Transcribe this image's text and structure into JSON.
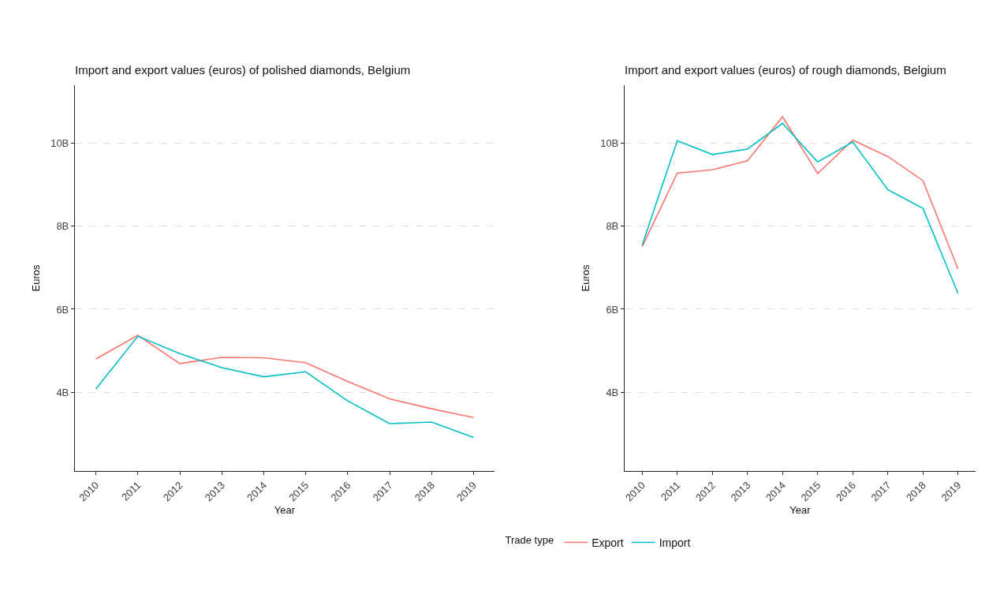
{
  "chart_data": [
    {
      "type": "line",
      "title": "Import and export values (euros) of polished diamonds, Belgium",
      "xlabel": "Year",
      "ylabel": "Euros",
      "categories": [
        "2010",
        "2011",
        "2012",
        "2013",
        "2014",
        "2015",
        "2016",
        "2017",
        "2018",
        "2019"
      ],
      "series": [
        {
          "color": "#f8766d",
          "values": [
            4.8,
            5.37,
            4.69,
            4.84,
            4.83,
            4.71,
            4.26,
            3.84,
            3.6,
            3.39
          ]
        },
        {
          "color": "#00bfc4",
          "values": [
            4.08,
            5.35,
            4.93,
            4.59,
            4.37,
            4.49,
            3.79,
            3.24,
            3.28,
            2.91
          ]
        }
      ],
      "ylim": [
        2.1,
        11.4
      ],
      "yticks": [
        {
          "value": 4,
          "label": "4B"
        },
        {
          "value": 6,
          "label": "6B"
        },
        {
          "value": 8,
          "label": "8B"
        },
        {
          "value": 10,
          "label": "10B"
        }
      ],
      "grid": "y",
      "legend": false
    },
    {
      "type": "line",
      "title": "Import and export values (euros) of rough diamonds, Belgium",
      "xlabel": "Year",
      "ylabel": "Euros",
      "legend_title": "Trade type",
      "categories": [
        "2010",
        "2011",
        "2012",
        "2013",
        "2014",
        "2015",
        "2016",
        "2017",
        "2018",
        "2019"
      ],
      "series": [
        {
          "name": "Export",
          "color": "#f8766d",
          "values": [
            7.51,
            9.28,
            9.36,
            9.58,
            10.64,
            9.27,
            10.08,
            9.68,
            9.1,
            6.97
          ]
        },
        {
          "name": "Import",
          "color": "#00bfc4",
          "values": [
            7.55,
            10.06,
            9.73,
            9.86,
            10.48,
            9.55,
            10.03,
            8.88,
            8.43,
            6.38
          ]
        }
      ],
      "ylim": [
        2.1,
        11.4
      ],
      "yticks": [
        {
          "value": 4,
          "label": "4B"
        },
        {
          "value": 6,
          "label": "6B"
        },
        {
          "value": 8,
          "label": "8B"
        },
        {
          "value": 10,
          "label": "10B"
        }
      ],
      "grid": "y",
      "legend": "bottom"
    }
  ]
}
